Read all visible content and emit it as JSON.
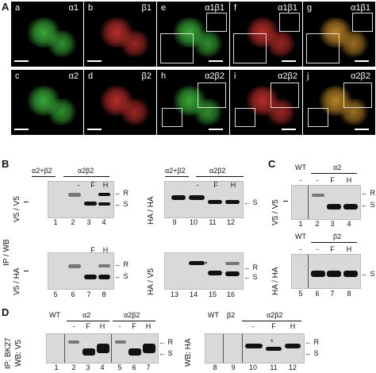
{
  "panel_A": {
    "label": "A",
    "images": [
      {
        "letter": "a",
        "name": "α1"
      },
      {
        "letter": "b",
        "name": "β1"
      },
      {
        "letter": "e",
        "name": "α1β1"
      },
      {
        "letter": "f",
        "name": "α1β1"
      },
      {
        "letter": "g",
        "name": "α1β1"
      },
      {
        "letter": "c",
        "name": "α2"
      },
      {
        "letter": "d",
        "name": "β2"
      },
      {
        "letter": "h",
        "name": "α2β2"
      },
      {
        "letter": "i",
        "name": "α2β2"
      },
      {
        "letter": "j",
        "name": "α2β2"
      }
    ],
    "colors": {
      "green": "#3bb23b",
      "red": "#c0302c",
      "merge": "#c28a2a"
    }
  },
  "panel_B": {
    "label": "B",
    "side_label": "IP / WB",
    "left_blot": {
      "header_left": "α2+β2",
      "header_right": "α2β2",
      "top_condition": "V5 / V5",
      "bottom_condition": "V5 / HA",
      "top_lane_marks": [
        "-",
        "F",
        "H"
      ],
      "top_lanes": [
        "1",
        "2",
        "3",
        "4"
      ],
      "bottom_lane_marks": [
        "-",
        "F",
        "H"
      ],
      "bottom_lanes": [
        "5",
        "6",
        "7",
        "8"
      ]
    },
    "right_blot": {
      "header_left": "α2+β2",
      "header_right": "α2β2",
      "top_condition": "HA / HA",
      "bottom_condition": "HA / V5",
      "top_lane_marks": [
        "-",
        "F",
        "H"
      ],
      "top_lanes": [
        "9",
        "10",
        "11",
        "12"
      ],
      "bottom_lanes": [
        "13",
        "14",
        "15",
        "16"
      ],
      "star": "*"
    },
    "arrow_R": "R",
    "arrow_S": "S"
  },
  "panel_C": {
    "label": "C",
    "top": {
      "wt": "WT",
      "subunit": "α2",
      "condition": "V5 / V5",
      "marks": [
        "-",
        "-",
        "F",
        "H"
      ],
      "lanes": [
        "1",
        "2",
        "3",
        "4"
      ]
    },
    "bottom": {
      "wt": "WT",
      "subunit": "β2",
      "condition": "HA / HA",
      "marks": [
        "-",
        "-",
        "F",
        "H"
      ],
      "lanes": [
        "5",
        "6",
        "7",
        "8"
      ]
    },
    "arrow_R": "R",
    "arrow_S": "S"
  },
  "panel_D": {
    "label": "D",
    "ip_label": "IP: BK27",
    "wb_left": "WB: V5",
    "wb_right": "WB: HA",
    "left": {
      "wt": "WT",
      "group1": "α2",
      "group2": "α2β2",
      "marks": [
        "-",
        "F",
        "H",
        "-",
        "F",
        "H"
      ],
      "lanes": [
        "1",
        "2",
        "3",
        "4",
        "5",
        "6",
        "7"
      ]
    },
    "right": {
      "wt": "WT",
      "beta": "β2",
      "group": "α2β2",
      "marks": [
        "-",
        "F",
        "H"
      ],
      "lanes": [
        "8",
        "9",
        "10",
        "11",
        "12"
      ]
    },
    "star": "*",
    "arrow_R": "R",
    "arrow_S": "S"
  }
}
